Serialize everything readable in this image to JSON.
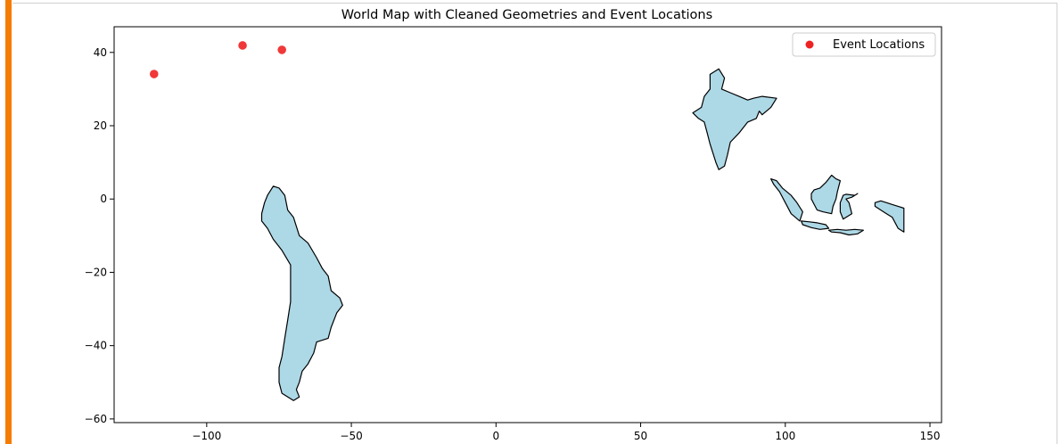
{
  "chart_data": {
    "type": "scatter",
    "title": "World Map with Cleaned Geometries and Event Locations",
    "xlabel": "",
    "ylabel": "",
    "xlim": [
      -132,
      154
    ],
    "ylim": [
      -61,
      47
    ],
    "xticks": [
      -100,
      -50,
      0,
      50,
      100,
      150
    ],
    "yticks": [
      40,
      20,
      0,
      -20,
      -40,
      -60
    ],
    "grid": false,
    "legend_position": "top-right",
    "series": [
      {
        "name": "Event Locations",
        "color": "#ee2222",
        "points": [
          {
            "x": -118.2,
            "y": 34.1
          },
          {
            "x": -87.6,
            "y": 41.9
          },
          {
            "x": -74.0,
            "y": 40.7
          }
        ]
      }
    ],
    "map_fill_color": "#add8e6",
    "map_edge_color": "#000000",
    "shapes": [
      {
        "name": "south-america",
        "polygon": [
          [
            -81,
            -4
          ],
          [
            -80,
            -1
          ],
          [
            -79,
            1
          ],
          [
            -77,
            3.5
          ],
          [
            -75,
            3
          ],
          [
            -73,
            1
          ],
          [
            -72,
            -3
          ],
          [
            -70,
            -5
          ],
          [
            -68,
            -10
          ],
          [
            -65,
            -12
          ],
          [
            -62,
            -16
          ],
          [
            -60,
            -19
          ],
          [
            -58,
            -21
          ],
          [
            -57,
            -25
          ],
          [
            -54,
            -27
          ],
          [
            -53,
            -29
          ],
          [
            -55,
            -31
          ],
          [
            -57,
            -35
          ],
          [
            -58,
            -38
          ],
          [
            -62,
            -39
          ],
          [
            -63,
            -42
          ],
          [
            -65,
            -45
          ],
          [
            -67,
            -47
          ],
          [
            -68,
            -50
          ],
          [
            -69,
            -52
          ],
          [
            -68,
            -54
          ],
          [
            -70,
            -55
          ],
          [
            -74,
            -53
          ],
          [
            -75,
            -50
          ],
          [
            -75,
            -46
          ],
          [
            -74,
            -43
          ],
          [
            -73,
            -38
          ],
          [
            -72,
            -33
          ],
          [
            -71,
            -28
          ],
          [
            -71,
            -23
          ],
          [
            -71,
            -18
          ],
          [
            -74,
            -14
          ],
          [
            -77,
            -11
          ],
          [
            -79,
            -8
          ],
          [
            -81,
            -6
          ]
        ]
      },
      {
        "name": "india",
        "polygon": [
          [
            74,
            34
          ],
          [
            77,
            35.5
          ],
          [
            79,
            33
          ],
          [
            78,
            30
          ],
          [
            81,
            29
          ],
          [
            84,
            28
          ],
          [
            87,
            27
          ],
          [
            89,
            27.5
          ],
          [
            92,
            28
          ],
          [
            97,
            27.5
          ],
          [
            95,
            25
          ],
          [
            92,
            23
          ],
          [
            91,
            24
          ],
          [
            90,
            22
          ],
          [
            87,
            21
          ],
          [
            84,
            18
          ],
          [
            81,
            15.5
          ],
          [
            80,
            12
          ],
          [
            79,
            9
          ],
          [
            77,
            8
          ],
          [
            76,
            10
          ],
          [
            74,
            15
          ],
          [
            73,
            18
          ],
          [
            72,
            21
          ],
          [
            70,
            22
          ],
          [
            68,
            23.5
          ],
          [
            71,
            25
          ],
          [
            72,
            28
          ],
          [
            74,
            30
          ]
        ]
      },
      {
        "name": "sumatra",
        "polygon": [
          [
            95,
            5.5
          ],
          [
            97,
            5
          ],
          [
            99,
            3
          ],
          [
            102,
            1
          ],
          [
            104,
            -1
          ],
          [
            106,
            -3.5
          ],
          [
            105,
            -6
          ],
          [
            102,
            -4
          ],
          [
            100,
            -1
          ],
          [
            98,
            2
          ],
          [
            96,
            4
          ]
        ]
      },
      {
        "name": "borneo",
        "polygon": [
          [
            109,
            1.5
          ],
          [
            110,
            2.5
          ],
          [
            112,
            3
          ],
          [
            114,
            4.5
          ],
          [
            116,
            6.5
          ],
          [
            117.5,
            5.5
          ],
          [
            119,
            5
          ],
          [
            118,
            2
          ],
          [
            117.5,
            0
          ],
          [
            116.5,
            -2
          ],
          [
            116,
            -4
          ],
          [
            113,
            -3.5
          ],
          [
            111,
            -3
          ],
          [
            110,
            -1.5
          ],
          [
            109,
            0
          ]
        ]
      },
      {
        "name": "java",
        "polygon": [
          [
            105.5,
            -6
          ],
          [
            108,
            -6.2
          ],
          [
            111,
            -6.5
          ],
          [
            114,
            -7
          ],
          [
            115,
            -8
          ],
          [
            112,
            -8.3
          ],
          [
            109,
            -7.8
          ],
          [
            106,
            -7
          ]
        ]
      },
      {
        "name": "sulawesi",
        "polygon": [
          [
            119,
            -1
          ],
          [
            120,
            1
          ],
          [
            121,
            1.3
          ],
          [
            124,
            1
          ],
          [
            125,
            1.5
          ],
          [
            123,
            0.5
          ],
          [
            121,
            0
          ],
          [
            122,
            -1
          ],
          [
            123,
            -4
          ],
          [
            121,
            -5
          ],
          [
            120,
            -5.5
          ],
          [
            119,
            -3.5
          ]
        ]
      },
      {
        "name": "new-guinea-west",
        "polygon": [
          [
            131,
            -1
          ],
          [
            133,
            -0.5
          ],
          [
            135,
            -1
          ],
          [
            137,
            -1.5
          ],
          [
            139,
            -2
          ],
          [
            141,
            -2.5
          ],
          [
            141,
            -9
          ],
          [
            139,
            -8
          ],
          [
            137,
            -5
          ],
          [
            135,
            -4
          ],
          [
            133,
            -3
          ],
          [
            131,
            -2
          ]
        ]
      },
      {
        "name": "nusa-tenggara",
        "polygon": [
          [
            115,
            -8.5
          ],
          [
            118,
            -8.3
          ],
          [
            121,
            -8.5
          ],
          [
            124,
            -8.3
          ],
          [
            127,
            -8.5
          ],
          [
            125,
            -9.5
          ],
          [
            122,
            -9.8
          ],
          [
            119,
            -9.2
          ],
          [
            116,
            -9
          ]
        ]
      }
    ]
  }
}
